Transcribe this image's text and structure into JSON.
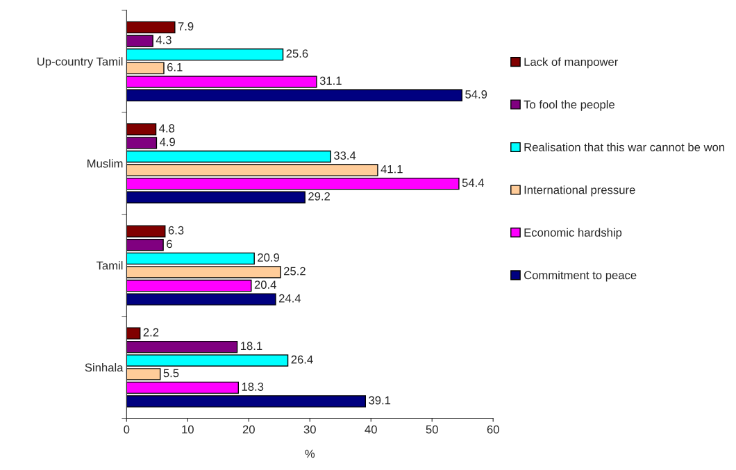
{
  "chart_data": {
    "type": "bar",
    "orientation": "horizontal",
    "xlabel": "%",
    "categories": [
      "Up-country Tamil",
      "Muslim",
      "Tamil",
      "Sinhala"
    ],
    "series": [
      {
        "name": "Lack of manpower",
        "color": "#800000",
        "values": [
          7.9,
          4.8,
          6.3,
          2.2
        ]
      },
      {
        "name": "To fool the people",
        "color": "#800080",
        "values": [
          4.3,
          4.9,
          6,
          18.1
        ]
      },
      {
        "name": "Realisation that this war cannot be won",
        "color": "#00ffff",
        "values": [
          25.6,
          33.4,
          20.9,
          26.4
        ]
      },
      {
        "name": "International pressure",
        "color": "#ffcc99",
        "values": [
          6.1,
          41.1,
          25.2,
          5.5
        ]
      },
      {
        "name": "Economic hardship",
        "color": "#ff00ff",
        "values": [
          31.1,
          54.4,
          20.4,
          18.3
        ]
      },
      {
        "name": "Commitment to peace",
        "color": "#000080",
        "values": [
          54.9,
          29.2,
          24.4,
          39.1
        ]
      }
    ],
    "xlim": [
      0,
      60
    ],
    "xticks": [
      0,
      10,
      20,
      30,
      40,
      50,
      60
    ],
    "data_labels": true,
    "grid": false,
    "legend": "right"
  }
}
